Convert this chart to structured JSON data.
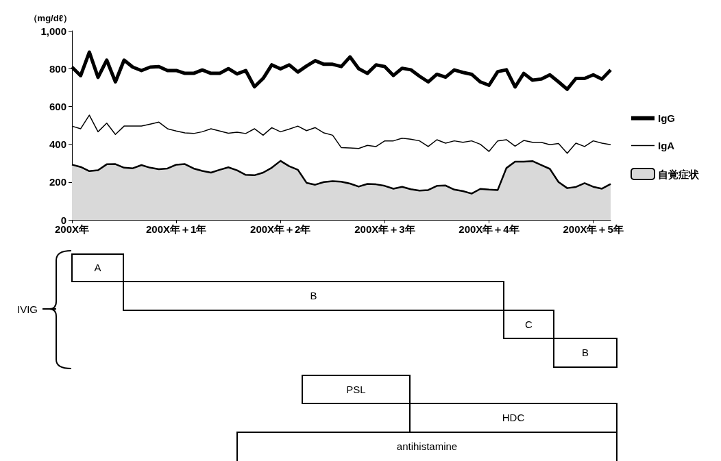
{
  "chart_data": {
    "type": "line",
    "ylabel": "（mg/dℓ）",
    "categories": [
      "200X年",
      null,
      null,
      null,
      null,
      null,
      null,
      null,
      null,
      null,
      null,
      null,
      "200X年＋1年",
      null,
      null,
      null,
      null,
      null,
      null,
      null,
      null,
      null,
      null,
      null,
      "200X年＋2年",
      null,
      null,
      null,
      null,
      null,
      null,
      null,
      null,
      null,
      null,
      null,
      "200X年＋3年",
      null,
      null,
      null,
      null,
      null,
      null,
      null,
      null,
      null,
      null,
      null,
      "200X年＋4年",
      null,
      null,
      null,
      null,
      null,
      null,
      null,
      null,
      null,
      null,
      null,
      "200X年＋5年",
      null,
      null
    ],
    "ylim": [
      0,
      1000
    ],
    "yticks": [
      0,
      200,
      400,
      600,
      800,
      {
        "value": 1000,
        "label": "1,000"
      }
    ],
    "grid": false,
    "legend": "right",
    "marker": "none",
    "series": [
      {
        "name": "IgG",
        "type": "line",
        "color": "#000000",
        "values": [
          808,
          763,
          887,
          754,
          845,
          730,
          845,
          808,
          790,
          808,
          811,
          790,
          790,
          775,
          775,
          793,
          775,
          775,
          800,
          772,
          790,
          704,
          748,
          820,
          799,
          820,
          782,
          814,
          842,
          823,
          823,
          811,
          862,
          800,
          775,
          820,
          811,
          764,
          802,
          794,
          760,
          730,
          770,
          755,
          793,
          780,
          770,
          730,
          712,
          784,
          794,
          703,
          775,
          739,
          745,
          767,
          730,
          691,
          748,
          748,
          767,
          745,
          793
        ]
      },
      {
        "name": "IgA",
        "type": "line",
        "color": "#000000",
        "values": [
          496,
          482,
          554,
          466,
          512,
          452,
          496,
          496,
          496,
          506,
          517,
          482,
          470,
          460,
          457,
          466,
          482,
          470,
          458,
          464,
          457,
          482,
          448,
          488,
          466,
          480,
          496,
          472,
          488,
          460,
          448,
          382,
          380,
          378,
          394,
          388,
          418,
          418,
          432,
          427,
          418,
          388,
          424,
          406,
          418,
          410,
          418,
          400,
          362,
          418,
          424,
          390,
          420,
          410,
          410,
          398,
          404,
          352,
          406,
          388,
          418,
          406,
          398
        ]
      },
      {
        "name": "自覚症状",
        "type": "area",
        "color": "#d9d9d9",
        "values": [
          292,
          280,
          258,
          263,
          294,
          295,
          276,
          273,
          290,
          276,
          268,
          272,
          292,
          295,
          272,
          259,
          250,
          265,
          278,
          262,
          238,
          236,
          250,
          276,
          312,
          284,
          265,
          196,
          186,
          200,
          205,
          202,
          192,
          176,
          190,
          188,
          180,
          165,
          175,
          162,
          155,
          158,
          180,
          182,
          160,
          152,
          139,
          164,
          160,
          158,
          274,
          308,
          308,
          311,
          290,
          270,
          200,
          168,
          174,
          194,
          175,
          165,
          190
        ]
      }
    ],
    "annotations": [
      "IVIG",
      "A",
      "B",
      "C",
      "B",
      "PSL",
      "HDC",
      "antihistamine"
    ]
  }
}
